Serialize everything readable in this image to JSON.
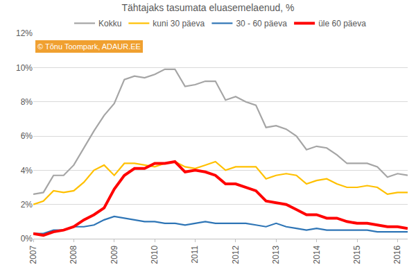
{
  "chart_data": {
    "type": "line",
    "title": "Tähtajaks tasumata eluasemelaenud, %",
    "categories": [
      "2007",
      null,
      null,
      null,
      "2008",
      null,
      null,
      null,
      "2009",
      null,
      null,
      null,
      "2010",
      null,
      null,
      null,
      "2011",
      null,
      null,
      null,
      "2012",
      null,
      null,
      null,
      "2013",
      null,
      null,
      null,
      "2014",
      null,
      null,
      null,
      "2015",
      null,
      null,
      null,
      "2016",
      null
    ],
    "series": [
      {
        "name": "Kokku",
        "color": "#A5A5A5",
        "line_style": "solid",
        "values": [
          2.6,
          2.7,
          3.7,
          3.7,
          4.3,
          5.3,
          6.3,
          7.2,
          7.9,
          9.3,
          9.5,
          9.4,
          9.6,
          9.9,
          9.9,
          8.9,
          9.0,
          9.2,
          9.2,
          8.1,
          8.3,
          8.0,
          7.8,
          6.5,
          6.6,
          6.4,
          6.0,
          5.2,
          5.4,
          5.3,
          4.9,
          4.4,
          4.4,
          4.4,
          4.2,
          3.6,
          3.8,
          3.7
        ]
      },
      {
        "name": "kuni 30 päeva",
        "color": "#FFC000",
        "line_style": "solid",
        "values": [
          2.0,
          2.2,
          2.8,
          2.7,
          2.8,
          3.3,
          4.0,
          4.3,
          3.7,
          4.4,
          4.4,
          4.3,
          4.2,
          4.4,
          4.5,
          4.2,
          4.1,
          4.3,
          4.5,
          4.0,
          4.2,
          4.2,
          4.2,
          3.5,
          3.7,
          3.8,
          3.7,
          3.2,
          3.4,
          3.5,
          3.2,
          3.0,
          3.0,
          3.1,
          3.0,
          2.6,
          2.7,
          2.7
        ]
      },
      {
        "name": "30 - 60 päeva",
        "color": "#2E75B6",
        "line_style": "solid",
        "values": [
          0.3,
          0.3,
          0.5,
          0.5,
          0.7,
          0.7,
          0.8,
          1.1,
          1.3,
          1.2,
          1.1,
          1.0,
          1.0,
          0.9,
          0.9,
          0.8,
          0.9,
          1.0,
          0.9,
          0.9,
          0.9,
          0.9,
          0.8,
          0.7,
          0.9,
          0.7,
          0.6,
          0.5,
          0.6,
          0.5,
          0.5,
          0.5,
          0.5,
          0.5,
          0.4,
          0.4,
          0.4,
          0.4
        ]
      },
      {
        "name": "üle 60 päeva",
        "color": "#FF0000",
        "line_style": "thick",
        "values": [
          0.3,
          0.2,
          0.4,
          0.5,
          0.7,
          1.1,
          1.4,
          1.8,
          2.9,
          3.7,
          4.1,
          4.1,
          4.4,
          4.4,
          4.5,
          3.9,
          4.0,
          3.9,
          3.7,
          3.2,
          3.2,
          3.0,
          2.8,
          2.2,
          2.1,
          2.0,
          1.7,
          1.4,
          1.4,
          1.2,
          1.2,
          1.0,
          0.9,
          0.9,
          0.8,
          0.7,
          0.7,
          0.6
        ]
      }
    ],
    "ylim": [
      0,
      12
    ],
    "yticks": [
      {
        "value": 0,
        "label": "0%"
      },
      {
        "value": 2,
        "label": "2%"
      },
      {
        "value": 4,
        "label": "4%"
      },
      {
        "value": 6,
        "label": "6%"
      },
      {
        "value": 8,
        "label": "8%"
      },
      {
        "value": 10,
        "label": "10%"
      },
      {
        "value": 12,
        "label": "12%"
      }
    ],
    "grid": true,
    "legend": "top",
    "annotations": [
      {
        "text": "© Tõnu Toompark, ADAUR.EE"
      }
    ]
  }
}
